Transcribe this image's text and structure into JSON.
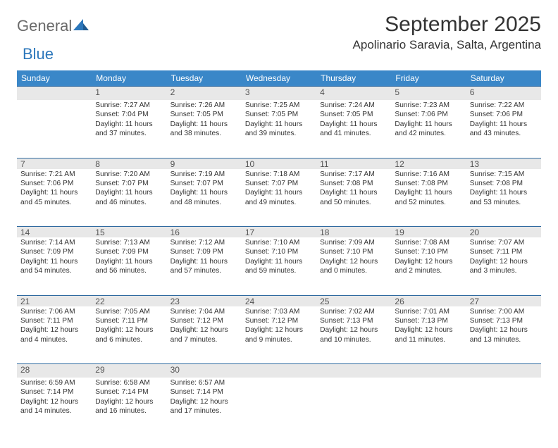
{
  "logo": {
    "text1": "General",
    "text2": "Blue"
  },
  "title": "September 2025",
  "location": "Apolinario Saravia, Salta, Argentina",
  "colors": {
    "header_bg": "#3a87c8",
    "header_fg": "#ffffff",
    "rule": "#2f6aa0",
    "daynum_bg": "#e8e8e8",
    "text": "#333333",
    "logo_gray": "#6a6a6a",
    "logo_blue": "#2c77bb"
  },
  "dow": [
    "Sunday",
    "Monday",
    "Tuesday",
    "Wednesday",
    "Thursday",
    "Friday",
    "Saturday"
  ],
  "weeks": [
    [
      null,
      {
        "n": "1",
        "sr": "7:27 AM",
        "ss": "7:04 PM",
        "dh": "11",
        "dm": "37"
      },
      {
        "n": "2",
        "sr": "7:26 AM",
        "ss": "7:05 PM",
        "dh": "11",
        "dm": "38"
      },
      {
        "n": "3",
        "sr": "7:25 AM",
        "ss": "7:05 PM",
        "dh": "11",
        "dm": "39"
      },
      {
        "n": "4",
        "sr": "7:24 AM",
        "ss": "7:05 PM",
        "dh": "11",
        "dm": "41"
      },
      {
        "n": "5",
        "sr": "7:23 AM",
        "ss": "7:06 PM",
        "dh": "11",
        "dm": "42"
      },
      {
        "n": "6",
        "sr": "7:22 AM",
        "ss": "7:06 PM",
        "dh": "11",
        "dm": "43"
      }
    ],
    [
      {
        "n": "7",
        "sr": "7:21 AM",
        "ss": "7:06 PM",
        "dh": "11",
        "dm": "45"
      },
      {
        "n": "8",
        "sr": "7:20 AM",
        "ss": "7:07 PM",
        "dh": "11",
        "dm": "46"
      },
      {
        "n": "9",
        "sr": "7:19 AM",
        "ss": "7:07 PM",
        "dh": "11",
        "dm": "48"
      },
      {
        "n": "10",
        "sr": "7:18 AM",
        "ss": "7:07 PM",
        "dh": "11",
        "dm": "49"
      },
      {
        "n": "11",
        "sr": "7:17 AM",
        "ss": "7:08 PM",
        "dh": "11",
        "dm": "50"
      },
      {
        "n": "12",
        "sr": "7:16 AM",
        "ss": "7:08 PM",
        "dh": "11",
        "dm": "52"
      },
      {
        "n": "13",
        "sr": "7:15 AM",
        "ss": "7:08 PM",
        "dh": "11",
        "dm": "53"
      }
    ],
    [
      {
        "n": "14",
        "sr": "7:14 AM",
        "ss": "7:09 PM",
        "dh": "11",
        "dm": "54"
      },
      {
        "n": "15",
        "sr": "7:13 AM",
        "ss": "7:09 PM",
        "dh": "11",
        "dm": "56"
      },
      {
        "n": "16",
        "sr": "7:12 AM",
        "ss": "7:09 PM",
        "dh": "11",
        "dm": "57"
      },
      {
        "n": "17",
        "sr": "7:10 AM",
        "ss": "7:10 PM",
        "dh": "11",
        "dm": "59"
      },
      {
        "n": "18",
        "sr": "7:09 AM",
        "ss": "7:10 PM",
        "dh": "12",
        "dm": "0"
      },
      {
        "n": "19",
        "sr": "7:08 AM",
        "ss": "7:10 PM",
        "dh": "12",
        "dm": "2"
      },
      {
        "n": "20",
        "sr": "7:07 AM",
        "ss": "7:11 PM",
        "dh": "12",
        "dm": "3"
      }
    ],
    [
      {
        "n": "21",
        "sr": "7:06 AM",
        "ss": "7:11 PM",
        "dh": "12",
        "dm": "4"
      },
      {
        "n": "22",
        "sr": "7:05 AM",
        "ss": "7:11 PM",
        "dh": "12",
        "dm": "6"
      },
      {
        "n": "23",
        "sr": "7:04 AM",
        "ss": "7:12 PM",
        "dh": "12",
        "dm": "7"
      },
      {
        "n": "24",
        "sr": "7:03 AM",
        "ss": "7:12 PM",
        "dh": "12",
        "dm": "9"
      },
      {
        "n": "25",
        "sr": "7:02 AM",
        "ss": "7:13 PM",
        "dh": "12",
        "dm": "10"
      },
      {
        "n": "26",
        "sr": "7:01 AM",
        "ss": "7:13 PM",
        "dh": "12",
        "dm": "11"
      },
      {
        "n": "27",
        "sr": "7:00 AM",
        "ss": "7:13 PM",
        "dh": "12",
        "dm": "13"
      }
    ],
    [
      {
        "n": "28",
        "sr": "6:59 AM",
        "ss": "7:14 PM",
        "dh": "12",
        "dm": "14"
      },
      {
        "n": "29",
        "sr": "6:58 AM",
        "ss": "7:14 PM",
        "dh": "12",
        "dm": "16"
      },
      {
        "n": "30",
        "sr": "6:57 AM",
        "ss": "7:14 PM",
        "dh": "12",
        "dm": "17"
      },
      null,
      null,
      null,
      null
    ]
  ],
  "labels": {
    "sunrise": "Sunrise:",
    "sunset": "Sunset:",
    "daylight": "Daylight:",
    "hours": "hours",
    "and": "and",
    "minutes": "minutes."
  }
}
